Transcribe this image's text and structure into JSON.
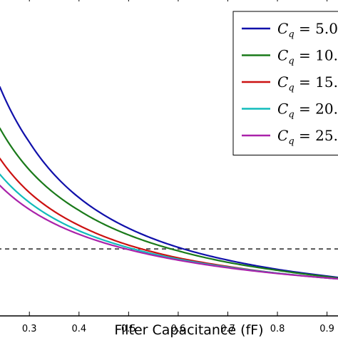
{
  "chart_data": {
    "type": "line",
    "xlabel": "Filter Capacitance (fF)",
    "ylabel": "",
    "title": "",
    "xlim": [
      0.235,
      0.925
    ],
    "ylim": [
      0,
      1
    ],
    "xticks": [
      0.3,
      0.4,
      0.5,
      0.6,
      0.7,
      0.8,
      0.9
    ],
    "xtick_labels": [
      "0.3",
      "0.4",
      "0.5",
      "0.6",
      "0.7",
      "0.8",
      "0.9"
    ],
    "legend_placement": "top-right",
    "reference_line": {
      "y": 0.21,
      "style": "dashed",
      "color": "#555555"
    },
    "series": [
      {
        "name": "5.0",
        "legend_symbol": "C",
        "legend_sub": "q",
        "legend_rest": " = 5.0",
        "color": "#1010aa",
        "exponent": 1.2,
        "x": [
          0.24,
          0.3,
          0.4,
          0.5,
          0.6,
          0.7,
          0.8,
          0.9,
          0.925
        ],
        "y": [
          0.72,
          0.545,
          0.371,
          0.275,
          0.215,
          0.175,
          0.146,
          0.125,
          0.12
        ]
      },
      {
        "name": "10.",
        "legend_symbol": "C",
        "legend_sub": "q",
        "legend_rest": " = 10.",
        "color": "#1a7a1a",
        "exponent": 1.15,
        "x": [
          0.24,
          0.3,
          0.4,
          0.5,
          0.6,
          0.7,
          0.8,
          0.9,
          0.925
        ],
        "y": [
          0.59,
          0.458,
          0.331,
          0.254,
          0.204,
          0.168,
          0.143,
          0.123,
          0.118
        ]
      },
      {
        "name": "15.",
        "legend_symbol": "C",
        "legend_sub": "q",
        "legend_rest": " = 15.",
        "color": "#cc1111",
        "exponent": 1.05,
        "x": [
          0.24,
          0.3,
          0.4,
          0.5,
          0.6,
          0.7,
          0.8,
          0.9,
          0.925
        ],
        "y": [
          0.495,
          0.387,
          0.284,
          0.222,
          0.182,
          0.155,
          0.134,
          0.119,
          0.116
        ]
      },
      {
        "name": "20.",
        "legend_symbol": "C",
        "legend_sub": "q",
        "legend_rest": " = 20.",
        "color": "#11bbbb",
        "exponent": 1.0,
        "x": [
          0.24,
          0.3,
          0.4,
          0.5,
          0.6,
          0.7,
          0.8,
          0.9,
          0.925
        ],
        "y": [
          0.445,
          0.356,
          0.267,
          0.214,
          0.178,
          0.153,
          0.134,
          0.119,
          0.116
        ]
      },
      {
        "name": "25.",
        "legend_symbol": "C",
        "legend_sub": "q",
        "legend_rest": " = 25.",
        "color": "#aa22aa",
        "exponent": 0.95,
        "x": [
          0.24,
          0.3,
          0.4,
          0.5,
          0.6,
          0.7,
          0.8,
          0.9,
          0.925
        ],
        "y": [
          0.41,
          0.334,
          0.256,
          0.208,
          0.175,
          0.151,
          0.133,
          0.119,
          0.116
        ]
      }
    ]
  }
}
